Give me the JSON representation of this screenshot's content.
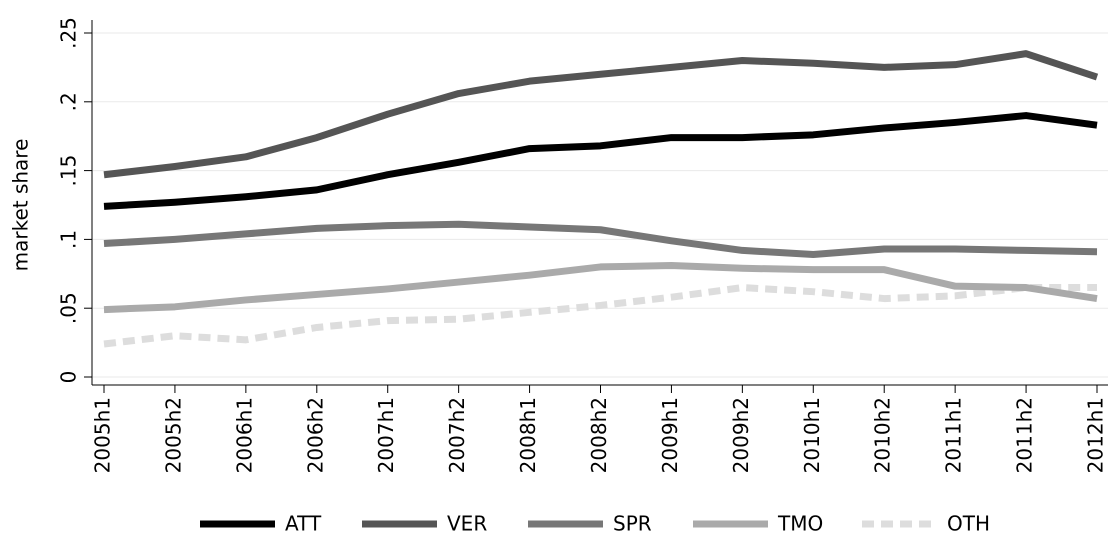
{
  "chart_data": {
    "type": "line",
    "y_label": "market share",
    "categories": [
      "2005h1",
      "2005h2",
      "2006h1",
      "2006h2",
      "2007h1",
      "2007h2",
      "2008h1",
      "2008h2",
      "2009h1",
      "2009h2",
      "2010h1",
      "2010h2",
      "2011h1",
      "2011h2",
      "2012h1"
    ],
    "ylim": [
      0,
      0.25
    ],
    "yticks": [
      0,
      {
        "value": 0.05,
        "label": ".05"
      },
      {
        "value": 0.1,
        "label": ".1"
      },
      {
        "value": 0.15,
        "label": ".15"
      },
      {
        "value": 0.2,
        "label": ".2"
      },
      {
        "value": 0.25,
        "label": ".25"
      }
    ],
    "grid": true,
    "legend": "bottom",
    "series": [
      {
        "name": "ATT",
        "color": "#000000",
        "style": "solid",
        "values": [
          0.124,
          0.127,
          0.131,
          0.136,
          0.147,
          0.156,
          0.166,
          0.168,
          0.174,
          0.174,
          0.176,
          0.181,
          0.185,
          0.19,
          0.183
        ]
      },
      {
        "name": "VER",
        "color": "#555555",
        "style": "solid",
        "values": [
          0.147,
          0.153,
          0.16,
          0.174,
          0.191,
          0.206,
          0.215,
          0.22,
          0.225,
          0.23,
          0.228,
          0.225,
          0.227,
          0.235,
          0.218
        ]
      },
      {
        "name": "SPR",
        "color": "#777777",
        "style": "solid",
        "values": [
          0.097,
          0.1,
          0.104,
          0.108,
          0.11,
          0.111,
          0.109,
          0.107,
          0.099,
          0.092,
          0.089,
          0.093,
          0.093,
          0.092,
          0.091
        ]
      },
      {
        "name": "TMO",
        "color": "#aaaaaa",
        "style": "solid",
        "values": [
          0.049,
          0.051,
          0.056,
          0.06,
          0.064,
          0.069,
          0.074,
          0.08,
          0.081,
          0.079,
          0.078,
          0.078,
          0.066,
          0.065,
          0.057
        ]
      },
      {
        "name": "OTH",
        "color": "#dddddd",
        "style": "dashed",
        "values": [
          0.024,
          0.03,
          0.027,
          0.036,
          0.041,
          0.042,
          0.047,
          0.052,
          0.058,
          0.065,
          0.062,
          0.057,
          0.059,
          0.065,
          0.065
        ]
      }
    ]
  }
}
